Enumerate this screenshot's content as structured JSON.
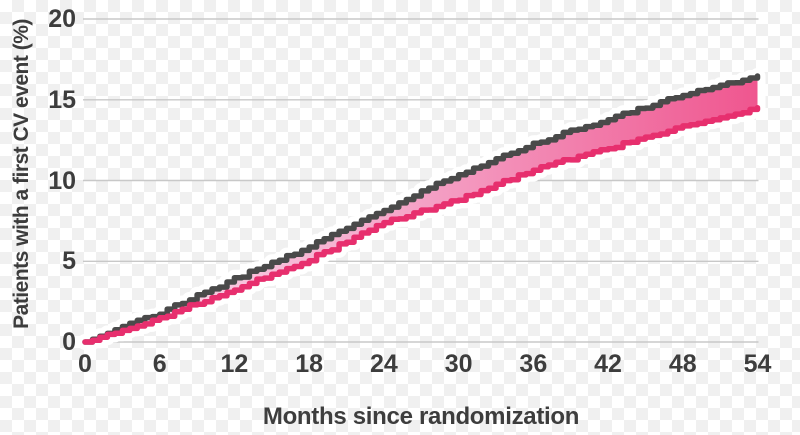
{
  "chart_data": {
    "type": "line",
    "subtype": "kaplan-meier-cumulative-incidence",
    "title": "",
    "xlabel": "Months since randomization",
    "ylabel": "Patients with a first CV event (%)",
    "x": [
      0,
      6,
      12,
      18,
      24,
      30,
      36,
      42,
      48,
      54
    ],
    "xticks": [
      0,
      6,
      12,
      18,
      24,
      30,
      36,
      42,
      48,
      54
    ],
    "yticks": [
      0,
      5,
      10,
      15,
      20
    ],
    "xlim": [
      0,
      54
    ],
    "ylim": [
      0,
      20
    ],
    "grid": "horizontal-only",
    "legend": "none",
    "series": [
      {
        "name": "upper-gray-curve",
        "color": "#4a4a4a",
        "values": [
          0,
          1.8,
          3.9,
          5.9,
          8.2,
          10.4,
          12.3,
          13.8,
          15.3,
          16.4
        ]
      },
      {
        "name": "lower-pink-curve",
        "color": "#e72f6e",
        "values": [
          0,
          1.5,
          3.3,
          5.1,
          7.4,
          8.8,
          10.7,
          12.0,
          13.3,
          14.5
        ]
      }
    ],
    "band_fill": {
      "between": [
        "upper-gray-curve",
        "lower-pink-curve"
      ],
      "gradient_left_to_right": [
        "#fbdfee",
        "#f5a9cb",
        "#ef568f"
      ]
    }
  },
  "style": {
    "background": "transparency-checkerboard",
    "checker_light": "#ffffff",
    "checker_dark": "#f0f0f0",
    "grid_color": "#c8c8c8",
    "halo_color": "#ffffff",
    "text_color": "#3d3d3d"
  }
}
